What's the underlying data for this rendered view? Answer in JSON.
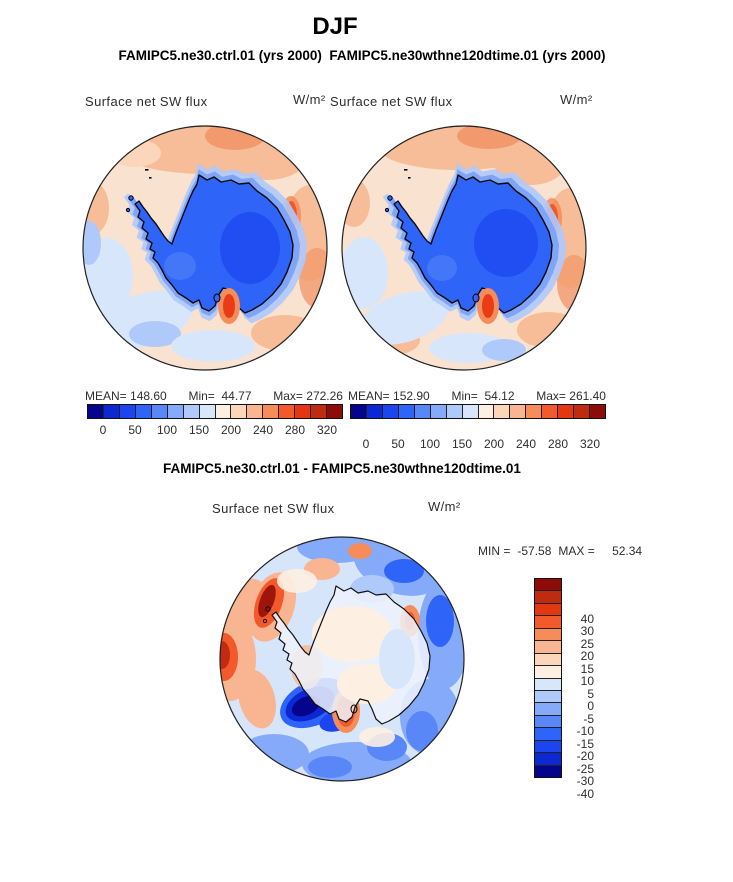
{
  "header": {
    "title": "DJF",
    "subtitle": "FAMIPC5.ne30.ctrl.01 (yrs 2000)  FAMIPC5.ne30wthne120dtime.01 (yrs 2000)"
  },
  "top_left_panel": {
    "variable": "Surface net SW flux",
    "units": "W/m²",
    "stats": {
      "mean_label": "MEAN=",
      "mean": "148.60",
      "min_label": "Min=",
      "min": "44.77",
      "max_label": "Max=",
      "max": "272.26"
    }
  },
  "top_right_panel": {
    "variable": "Surface net SW flux",
    "units": "W/m²",
    "stats": {
      "mean_label": "MEAN=",
      "mean": "152.90",
      "min_label": "Min=",
      "min": "54.12",
      "max_label": "Max=",
      "max": "261.40"
    }
  },
  "diff_panel": {
    "title": "FAMIPC5.ne30.ctrl.01 - FAMIPC5.ne30wthne120dtime.01",
    "variable": "Surface net SW flux",
    "units": "W/m²",
    "stats": {
      "min_label": "MIN =",
      "min": "-57.58",
      "max_label": "MAX =",
      "max": "52.34"
    }
  },
  "colorbars": {
    "flux": {
      "colors": [
        "#04048C",
        "#0C28D2",
        "#1C45F0",
        "#2E64F8",
        "#5A87F8",
        "#86AAFA",
        "#AFC9FB",
        "#D8E6FC",
        "#FDEFE2",
        "#FBD6BB",
        "#F9B591",
        "#F68C59",
        "#F2592B",
        "#E23711",
        "#BE2B11",
        "#8E0C08"
      ],
      "ticks": {
        "labels": [
          "0",
          "50",
          "100",
          "150",
          "200",
          "240",
          "280",
          "320"
        ],
        "positions": [
          6.25,
          18.75,
          31.25,
          43.75,
          56.25,
          68.75,
          81.25,
          93.75
        ]
      }
    },
    "diff": {
      "colors": [
        "#8E0C08",
        "#BE2B11",
        "#E23711",
        "#F2592B",
        "#F68C59",
        "#F9B591",
        "#FBD6BB",
        "#FDEFE2",
        "#D8E6FC",
        "#AFC9FB",
        "#86AAFA",
        "#5A87F8",
        "#2E64F8",
        "#1C45F0",
        "#0C28D2",
        "#04048C"
      ],
      "ticks": {
        "labels": [
          "40",
          "30",
          "25",
          "20",
          "15",
          "10",
          "5",
          "0",
          "-5",
          "-10",
          "-15",
          "-20",
          "-25",
          "-30",
          "-40"
        ],
        "positions": [
          6.25,
          12.5,
          18.75,
          25,
          31.25,
          37.5,
          43.75,
          50,
          56.25,
          62.5,
          68.75,
          75,
          81.25,
          87.5,
          93.75
        ]
      }
    }
  },
  "chart_data": [
    {
      "type": "heatmap",
      "subtype": "filled-contour-map",
      "projection": "south-polar-stereographic",
      "region": "Antarctica",
      "season": "DJF",
      "case": "FAMIPC5.ne30.ctrl.01 (yrs 2000)",
      "variable": "Surface net SW flux",
      "units": "W/m^2",
      "stats": {
        "mean": 148.6,
        "min": 44.77,
        "max": 272.26
      },
      "contour_levels": [
        0,
        25,
        50,
        75,
        100,
        125,
        150,
        175,
        200,
        220,
        240,
        260,
        280,
        300,
        320
      ],
      "colorbar_tick_labels": [
        0,
        50,
        100,
        150,
        200,
        240,
        280,
        320
      ],
      "legend_position": "below",
      "palette_direction": "blue-to-red"
    },
    {
      "type": "heatmap",
      "subtype": "filled-contour-map",
      "projection": "south-polar-stereographic",
      "region": "Antarctica",
      "season": "DJF",
      "case": "FAMIPC5.ne30wthne120dtime.01 (yrs 2000)",
      "variable": "Surface net SW flux",
      "units": "W/m^2",
      "stats": {
        "mean": 152.9,
        "min": 54.12,
        "max": 261.4
      },
      "contour_levels": [
        0,
        25,
        50,
        75,
        100,
        125,
        150,
        175,
        200,
        220,
        240,
        260,
        280,
        300,
        320
      ],
      "colorbar_tick_labels": [
        0,
        50,
        100,
        150,
        200,
        240,
        280,
        320
      ],
      "legend_position": "below",
      "palette_direction": "blue-to-red"
    },
    {
      "type": "heatmap",
      "subtype": "filled-contour-difference-map",
      "projection": "south-polar-stereographic",
      "region": "Antarctica",
      "season": "DJF",
      "case": "FAMIPC5.ne30.ctrl.01 - FAMIPC5.ne30wthne120dtime.01",
      "variable": "Surface net SW flux",
      "units": "W/m^2",
      "stats": {
        "min": -57.58,
        "max": 52.34
      },
      "contour_levels": [
        -40,
        -30,
        -25,
        -20,
        -15,
        -10,
        -5,
        0,
        5,
        10,
        15,
        20,
        25,
        30,
        40
      ],
      "colorbar_tick_labels": [
        40,
        30,
        25,
        20,
        15,
        10,
        5,
        0,
        -5,
        -10,
        -15,
        -20,
        -25,
        -30,
        -40
      ],
      "legend_position": "right",
      "palette_direction": "red-to-blue-top-to-bottom"
    }
  ]
}
